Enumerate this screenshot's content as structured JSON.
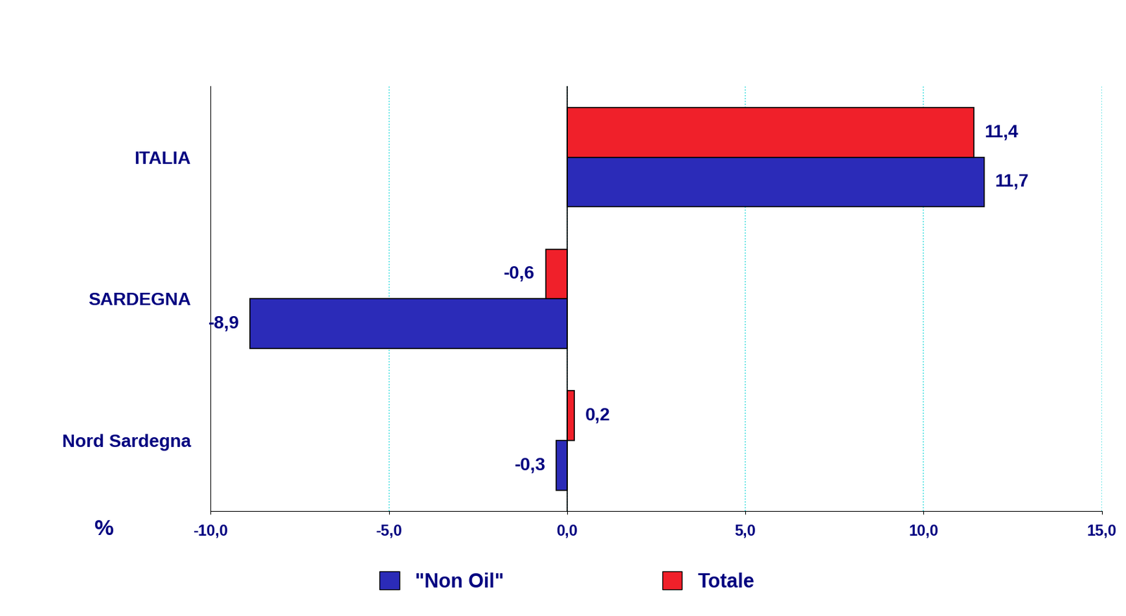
{
  "chart_data": {
    "type": "bar",
    "orientation": "horizontal",
    "categories": [
      "ITALIA",
      "SARDEGNA",
      "Nord Sardegna"
    ],
    "x_label": "%",
    "series": [
      {
        "name": "\"Non Oil\"",
        "color": "#2b2bb8",
        "values": [
          11.7,
          -8.9,
          -0.3
        ],
        "value_labels": [
          "11,7",
          "-8,9",
          "-0,3"
        ]
      },
      {
        "name": "Totale",
        "color": "#f0202a",
        "values": [
          11.4,
          -0.6,
          0.2
        ],
        "value_labels": [
          "11,4",
          "-0,6",
          "0,2"
        ]
      }
    ],
    "xlim": [
      -10,
      15
    ],
    "xticks": [
      {
        "value": -10,
        "label": "-10,0"
      },
      {
        "value": -5,
        "label": "-5,0"
      },
      {
        "value": 0,
        "label": "0,0"
      },
      {
        "value": 5,
        "label": "5,0"
      },
      {
        "value": 10,
        "label": "10,0"
      },
      {
        "value": 15,
        "label": "15,0"
      }
    ],
    "grid": true,
    "data_labels": true,
    "legend": "bottom"
  }
}
